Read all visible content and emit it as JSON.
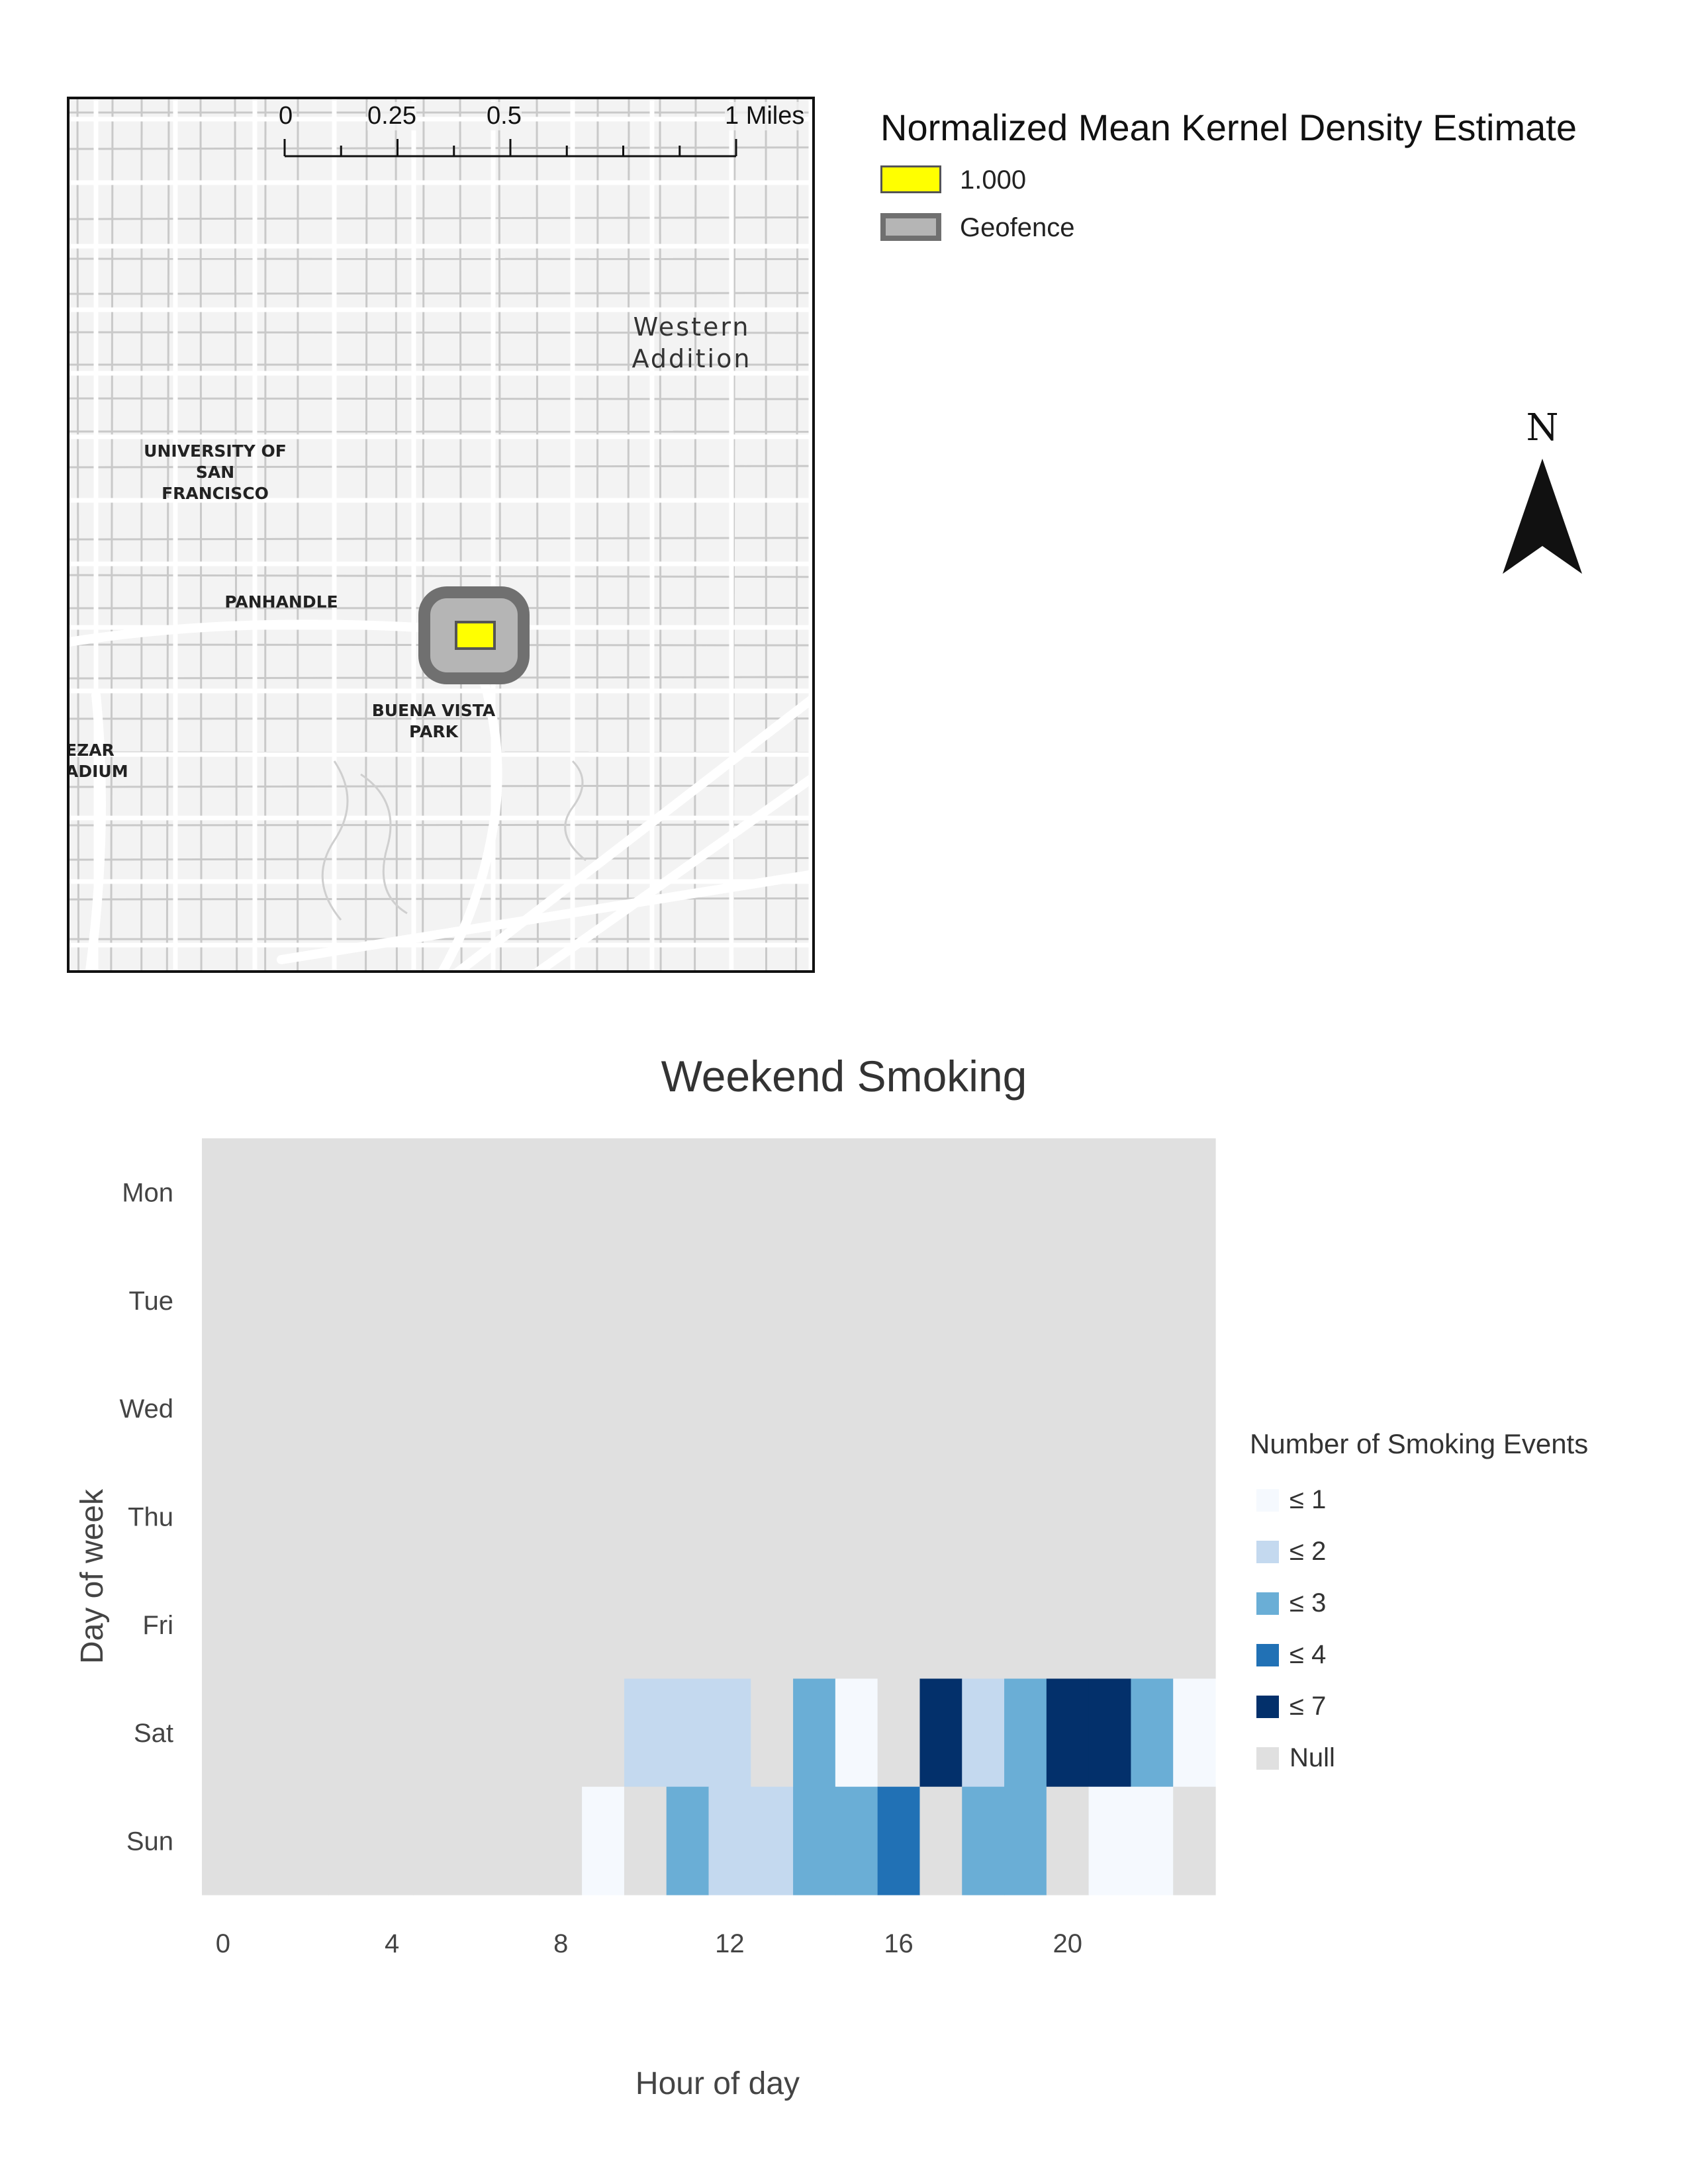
{
  "map": {
    "scale_bar": {
      "labels": [
        "0",
        "0.25",
        "0.5",
        "1 Miles"
      ]
    },
    "labels": [
      {
        "id": "western-addition",
        "text": "Western\nAddition",
        "style": "large"
      },
      {
        "id": "usf",
        "text": "UNIVERSITY OF\nSAN\nFRANCISCO",
        "style": "small"
      },
      {
        "id": "panhandle",
        "text": "PANHANDLE",
        "style": "small"
      },
      {
        "id": "buena-vista",
        "text": "BUENA VISTA\nPARK",
        "style": "small"
      },
      {
        "id": "kezar",
        "text": "EZAR\nADIUM",
        "style": "small"
      }
    ],
    "colors": {
      "kde": "#ffff00",
      "geofence_fill": "#b5b5b5",
      "geofence_border": "#707070"
    }
  },
  "map_legend": {
    "title": "Normalized Mean Kernel Density Estimate",
    "items": [
      {
        "label": "1.000",
        "color": "#ffff00",
        "border": "#555555"
      },
      {
        "label": "Geofence",
        "color": "#b5b5b5",
        "border": "#707070"
      }
    ]
  },
  "north_arrow": {
    "label": "N"
  },
  "chart_data": {
    "type": "heatmap",
    "title": "Weekend Smoking",
    "xlabel": "Hour of day",
    "ylabel": "Day of week",
    "x": [
      0,
      1,
      2,
      3,
      4,
      5,
      6,
      7,
      8,
      9,
      10,
      11,
      12,
      13,
      14,
      15,
      16,
      17,
      18,
      19,
      20,
      21,
      22,
      23
    ],
    "x_ticks": [
      0,
      4,
      8,
      12,
      16,
      20
    ],
    "y": [
      "Mon",
      "Tue",
      "Wed",
      "Thu",
      "Fri",
      "Sat",
      "Sun"
    ],
    "null_color": "#e0e0e0",
    "bins": [
      {
        "label": "≤ 1",
        "max": 1,
        "color": "#f5f9fe"
      },
      {
        "label": "≤ 2",
        "max": 2,
        "color": "#c4d9ef"
      },
      {
        "label": "≤ 3",
        "max": 3,
        "color": "#6aaed6"
      },
      {
        "label": "≤ 4",
        "max": 4,
        "color": "#2171b5"
      },
      {
        "label": "≤ 7",
        "max": 7,
        "color": "#03306b"
      },
      {
        "label": "Null",
        "max": null,
        "color": "#e0e0e0"
      }
    ],
    "legend_title": "Number of Smoking Events",
    "values": [
      [
        null,
        null,
        null,
        null,
        null,
        null,
        null,
        null,
        null,
        null,
        null,
        null,
        null,
        null,
        null,
        null,
        null,
        null,
        null,
        null,
        null,
        null,
        null,
        null
      ],
      [
        null,
        null,
        null,
        null,
        null,
        null,
        null,
        null,
        null,
        null,
        null,
        null,
        null,
        null,
        null,
        null,
        null,
        null,
        null,
        null,
        null,
        null,
        null,
        null
      ],
      [
        null,
        null,
        null,
        null,
        null,
        null,
        null,
        null,
        null,
        null,
        null,
        null,
        null,
        null,
        null,
        null,
        null,
        null,
        null,
        null,
        null,
        null,
        null,
        null
      ],
      [
        null,
        null,
        null,
        null,
        null,
        null,
        null,
        null,
        null,
        null,
        null,
        null,
        null,
        null,
        null,
        null,
        null,
        null,
        null,
        null,
        null,
        null,
        null,
        null
      ],
      [
        null,
        null,
        null,
        null,
        null,
        null,
        null,
        null,
        null,
        null,
        null,
        null,
        null,
        null,
        null,
        null,
        null,
        null,
        null,
        null,
        null,
        null,
        null,
        null
      ],
      [
        null,
        null,
        null,
        null,
        null,
        null,
        null,
        null,
        null,
        null,
        2,
        2,
        2,
        null,
        3,
        1,
        null,
        7,
        2,
        3,
        7,
        7,
        3,
        1
      ],
      [
        null,
        null,
        null,
        null,
        null,
        null,
        null,
        null,
        null,
        1,
        null,
        3,
        2,
        2,
        3,
        3,
        4,
        null,
        3,
        3,
        null,
        1,
        1,
        null
      ]
    ]
  }
}
